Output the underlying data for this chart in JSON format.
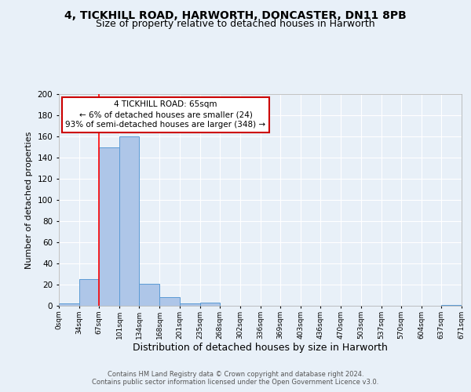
{
  "title_line1": "4, TICKHILL ROAD, HARWORTH, DONCASTER, DN11 8PB",
  "title_line2": "Size of property relative to detached houses in Harworth",
  "xlabel": "Distribution of detached houses by size in Harworth",
  "ylabel": "Number of detached properties",
  "footer_line1": "Contains HM Land Registry data © Crown copyright and database right 2024.",
  "footer_line2": "Contains public sector information licensed under the Open Government Licence v3.0.",
  "bin_edges": [
    0,
    34,
    67,
    101,
    134,
    168,
    201,
    235,
    268,
    302,
    336,
    369,
    403,
    436,
    470,
    503,
    537,
    570,
    604,
    637,
    671
  ],
  "bar_heights": [
    2,
    25,
    150,
    160,
    21,
    8,
    2,
    3,
    0,
    0,
    0,
    0,
    0,
    0,
    0,
    0,
    0,
    0,
    0,
    1
  ],
  "bar_color": "#aec6e8",
  "bar_edgecolor": "#5b9bd5",
  "red_line_x": 67,
  "annotation_title": "4 TICKHILL ROAD: 65sqm",
  "annotation_line2": "← 6% of detached houses are smaller (24)",
  "annotation_line3": "93% of semi-detached houses are larger (348) →",
  "annotation_box_edgecolor": "#cc0000",
  "annotation_box_facecolor": "#ffffff",
  "ylim": [
    0,
    200
  ],
  "yticks": [
    0,
    20,
    40,
    60,
    80,
    100,
    120,
    140,
    160,
    180,
    200
  ],
  "bg_color": "#e8f0f8",
  "plot_bg_color": "#e8f0f8",
  "grid_color": "#ffffff",
  "title_fontsize": 10,
  "subtitle_fontsize": 9
}
